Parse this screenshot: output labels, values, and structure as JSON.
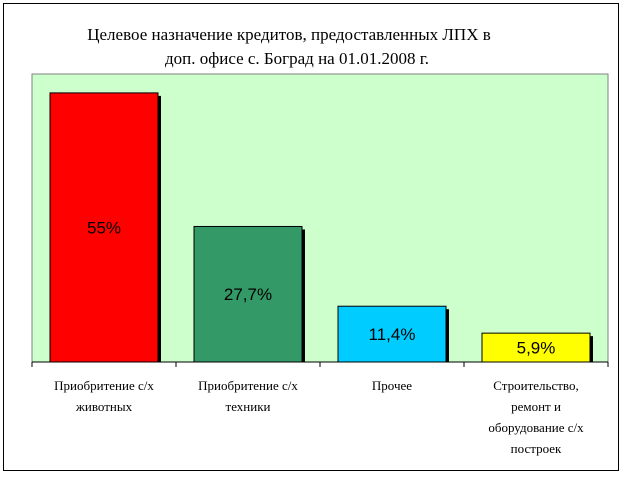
{
  "chart_data": {
    "type": "bar",
    "title_lines": [
      "Целевое назначение кредитов, предоставленных ЛПХ в",
      "доп. офисе с. Боград на 01.01.2008 г."
    ],
    "categories": [
      [
        "Приобритение с/х",
        "животных"
      ],
      [
        "Приобритение с/х",
        "техники"
      ],
      [
        "Прочее"
      ],
      [
        "Строительство,",
        "ремонт и",
        "оборудование с/х",
        "построек"
      ]
    ],
    "values": [
      55,
      27.7,
      11.4,
      5.9
    ],
    "data_labels": [
      "55%",
      "27,7%",
      "11,4%",
      "5,9%"
    ],
    "colors": [
      "#FF0000",
      "#339966",
      "#00CCFF",
      "#FFFF00"
    ],
    "plot_background": "#CCFFCC",
    "ylim": [
      0,
      56
    ],
    "grid": false,
    "legend": "none"
  }
}
